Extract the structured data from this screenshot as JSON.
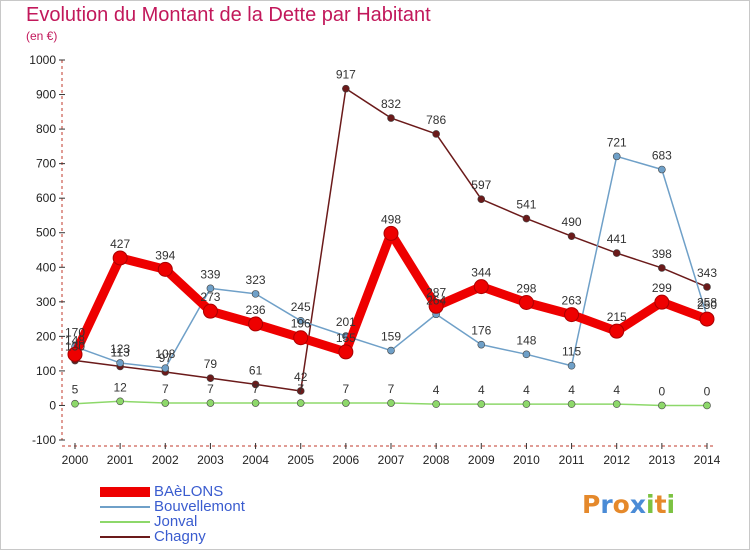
{
  "title": "Evolution du Montant de la Dette par Habitant",
  "unit_label": "(en €)",
  "logo": {
    "letters": [
      "P",
      "r",
      "o",
      "x",
      "i",
      "t",
      "i"
    ],
    "colors": [
      "#e5892b",
      "#4a8bd6",
      "#e5892b",
      "#4a8bd6",
      "#7cc242",
      "#e5892b",
      "#7cc242"
    ]
  },
  "chart_data": {
    "type": "line",
    "x": [
      "2000",
      "2001",
      "2002",
      "2003",
      "2004",
      "2005",
      "2006",
      "2007",
      "2008",
      "2009",
      "2010",
      "2011",
      "2012",
      "2013",
      "2014"
    ],
    "ylim": [
      -100,
      1000
    ],
    "yticks": [
      -100,
      0,
      100,
      200,
      300,
      400,
      500,
      600,
      700,
      800,
      900,
      1000
    ],
    "grid": false,
    "legend": "bottom-left",
    "series": [
      {
        "name": "BAèLONS",
        "color": "#ee0000",
        "values": [
          148,
          427,
          394,
          273,
          236,
          196,
          155,
          498,
          287,
          344,
          298,
          263,
          215,
          299,
          250
        ]
      },
      {
        "name": "Bouvellemont",
        "color": "#6fa0c8",
        "values": [
          170,
          123,
          108,
          339,
          323,
          245,
          201,
          159,
          264,
          176,
          148,
          115,
          721,
          683,
          258
        ]
      },
      {
        "name": "Jonval",
        "color": "#8dd86a",
        "values": [
          5,
          12,
          7,
          7,
          7,
          7,
          7,
          7,
          4,
          4,
          4,
          4,
          4,
          0,
          0
        ]
      },
      {
        "name": "Chagny",
        "color": "#6b1a1a",
        "values": [
          130,
          113,
          97,
          79,
          61,
          42,
          917,
          832,
          786,
          597,
          541,
          490,
          441,
          398,
          343
        ]
      }
    ]
  }
}
